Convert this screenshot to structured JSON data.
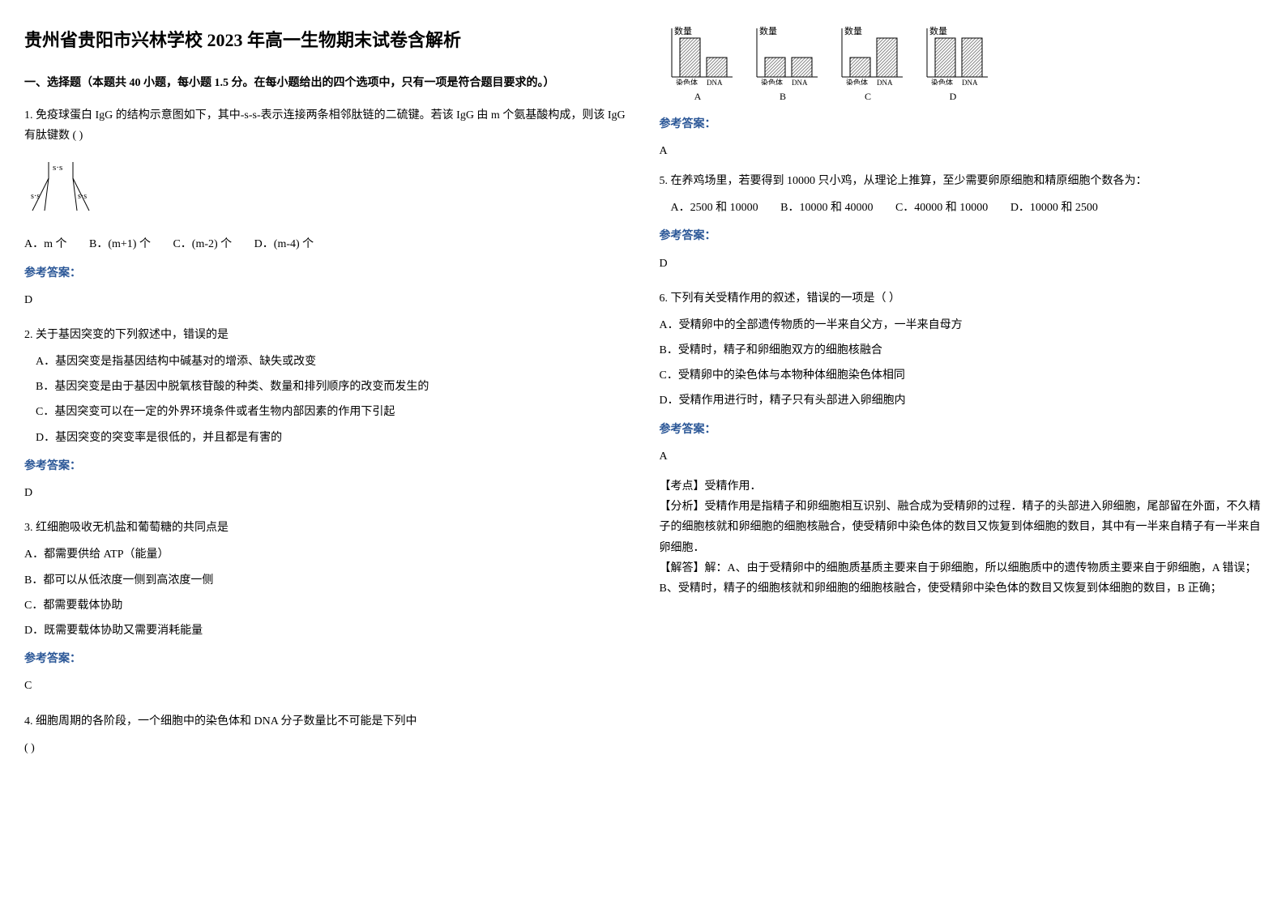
{
  "title": "贵州省贵阳市兴林学校 2023 年高一生物期末试卷含解析",
  "section1": "一、选择题（本题共 40 小题，每小题 1.5 分。在每小题给出的四个选项中，只有一项是符合题目要求的。）",
  "answer_label": "参考答案：",
  "q1": {
    "text1": "1. 免疫球蛋白 IgG 的结构示意图如下，其中-s-s-表示连接两条相邻肽链的二硫键。若该 IgG 由 m 个氨基酸构成，则该 IgG 有肽键数 (    )",
    "optA": "A．m 个",
    "optB": "B．(m+1) 个",
    "optC": "C．(m-2) 个",
    "optD": "D．(m-4) 个",
    "answer": "D"
  },
  "q2": {
    "text": "2. 关于基因突变的下列叙述中，错误的是",
    "optA": "A．基因突变是指基因结构中碱基对的增添、缺失或改变",
    "optB": "B．基因突变是由于基因中脱氧核苷酸的种类、数量和排列顺序的改变而发生的",
    "optC": "C．基因突变可以在一定的外界环境条件或者生物内部因素的作用下引起",
    "optD": "D．基因突变的突变率是很低的，并且都是有害的",
    "answer": "D"
  },
  "q3": {
    "text": "3. 红细胞吸收无机盐和葡萄糖的共同点是",
    "optA": "A．都需要供给 ATP（能量）",
    "optB": "B．都可以从低浓度一侧到高浓度一侧",
    "optC": "C．都需要载体协助",
    "optD": "D．既需要载体协助又需要消耗能量",
    "answer": "C"
  },
  "q4": {
    "text1": "4. 细胞周期的各阶段，一个细胞中的染色体和 DNA 分子数量比不可能是下列中",
    "text2": "(        )",
    "ylabel": "数量",
    "xlabel1": "染色体",
    "xlabel2": "DNA",
    "labelA": "A",
    "labelB": "B",
    "labelC": "C",
    "labelD": "D",
    "answer": "A",
    "chart_fill": "#cccccc",
    "chart_stroke": "#000000",
    "chartA": {
      "bar1": 60,
      "bar2": 30
    },
    "chartB": {
      "bar1": 30,
      "bar2": 30
    },
    "chartC": {
      "bar1": 30,
      "bar2": 60
    },
    "chartD": {
      "bar1": 60,
      "bar2": 60
    }
  },
  "q5": {
    "text": "5. 在养鸡场里，若要得到 10000 只小鸡，从理论上推算，至少需要卵原细胞和精原细胞个数各为：",
    "optA": "A．2500 和 10000",
    "optB": "B．10000 和 40000",
    "optC": "C．40000 和 10000",
    "optD": "D．10000 和 2500",
    "answer": "D"
  },
  "q6": {
    "text": "6. 下列有关受精作用的叙述，错误的一项是（    ）",
    "optA": "A．受精卵中的全部遗传物质的一半来自父方，一半来自母方",
    "optB": "B．受精时，精子和卵细胞双方的细胞核融合",
    "optC": "C．受精卵中的染色体与本物种体细胞染色体相同",
    "optD": "D．受精作用进行时，精子只有头部进入卵细胞内",
    "answer": "A",
    "kaodian_label": "【考点】",
    "kaodian": "受精作用．",
    "fenxi_label": "【分析】",
    "fenxi": "受精作用是指精子和卵细胞相互识别、融合成为受精卵的过程．精子的头部进入卵细胞，尾部留在外面，不久精子的细胞核就和卵细胞的细胞核融合，使受精卵中染色体的数目又恢复到体细胞的数目，其中有一半来自精子有一半来自卵细胞．",
    "jieda_label": "【解答】",
    "jieda1": "解：A、由于受精卵中的细胞质基质主要来自于卵细胞，所以细胞质中的遗传物质主要来自于卵细胞，A 错误；",
    "jieda2": "B、受精时，精子的细胞核就和卵细胞的细胞核融合，使受精卵中染色体的数目又恢复到体细胞的数目，B 正确；"
  }
}
